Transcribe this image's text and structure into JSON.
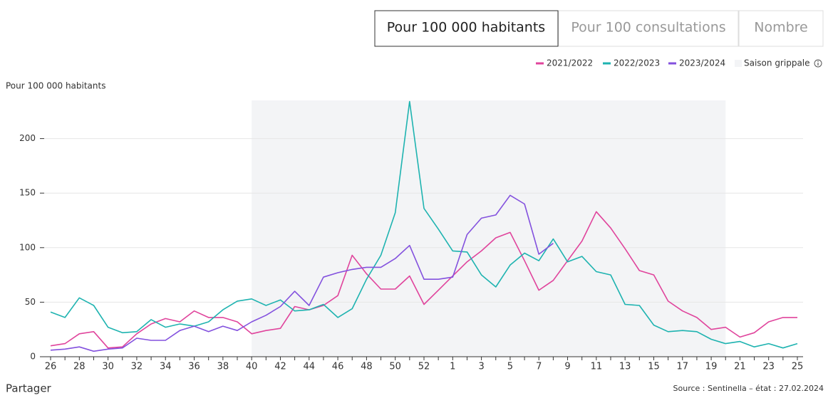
{
  "tabs": [
    "Pour 100 000 habitants",
    "Pour 100 consultations",
    "Nombre"
  ],
  "chart_data": {
    "type": "line",
    "y_label": "Pour 100 000 habitants",
    "categories": [
      26,
      null,
      28,
      null,
      30,
      null,
      32,
      null,
      34,
      null,
      36,
      null,
      38,
      null,
      40,
      null,
      42,
      null,
      44,
      null,
      46,
      null,
      48,
      null,
      50,
      null,
      52,
      null,
      1,
      null,
      3,
      null,
      5,
      null,
      7,
      null,
      9,
      null,
      11,
      null,
      13,
      null,
      15,
      null,
      17,
      null,
      19,
      null,
      21,
      null,
      23,
      null,
      25
    ],
    "series": [
      {
        "name": "2021/2022",
        "color": "#e0449c",
        "values": [
          10,
          12,
          21,
          23,
          8,
          9,
          21,
          30,
          35,
          32,
          42,
          36,
          36,
          32,
          21,
          24,
          26,
          46,
          43,
          47,
          56,
          93,
          76,
          62,
          62,
          74,
          48,
          61,
          74,
          87,
          97,
          109,
          114,
          88,
          61,
          70,
          88,
          106,
          133,
          118,
          99,
          79,
          75,
          51,
          42,
          36,
          25,
          27,
          18,
          22,
          32,
          36,
          36
        ]
      },
      {
        "name": "2022/2023",
        "color": "#1eb3b0",
        "values": [
          41,
          36,
          54,
          47,
          27,
          22,
          23,
          34,
          27,
          30,
          28,
          32,
          43,
          51,
          53,
          47,
          52,
          42,
          43,
          48,
          36,
          44,
          71,
          93,
          132,
          234,
          136,
          117,
          97,
          96,
          75,
          64,
          84,
          95,
          88,
          108,
          87,
          92,
          78,
          75,
          48,
          47,
          29,
          23,
          24,
          23,
          16,
          12,
          14,
          9,
          12,
          8,
          12
        ]
      },
      {
        "name": "2023/2024",
        "color": "#8351de",
        "values": [
          6,
          7,
          9,
          5,
          7,
          8,
          17,
          15,
          15,
          24,
          28,
          23,
          28,
          24,
          32,
          38,
          46,
          60,
          47,
          73,
          77,
          80,
          82,
          82,
          90,
          102,
          71,
          71,
          73,
          112,
          127,
          130,
          148,
          140,
          94,
          104,
          null,
          null,
          null,
          null,
          null,
          null,
          null,
          null,
          null,
          null,
          null,
          null,
          null,
          null,
          null,
          null,
          null
        ]
      }
    ],
    "season": {
      "name": "Saison grippale",
      "start": 40,
      "end": 20,
      "color": "#f3f4f6"
    },
    "ylim": [
      0,
      235
    ],
    "yticks": [
      0,
      50,
      100,
      150,
      200
    ],
    "grid": true
  },
  "footer": {
    "share": "Partager",
    "source": "Source : Sentinella – état : 27.02.2024"
  }
}
